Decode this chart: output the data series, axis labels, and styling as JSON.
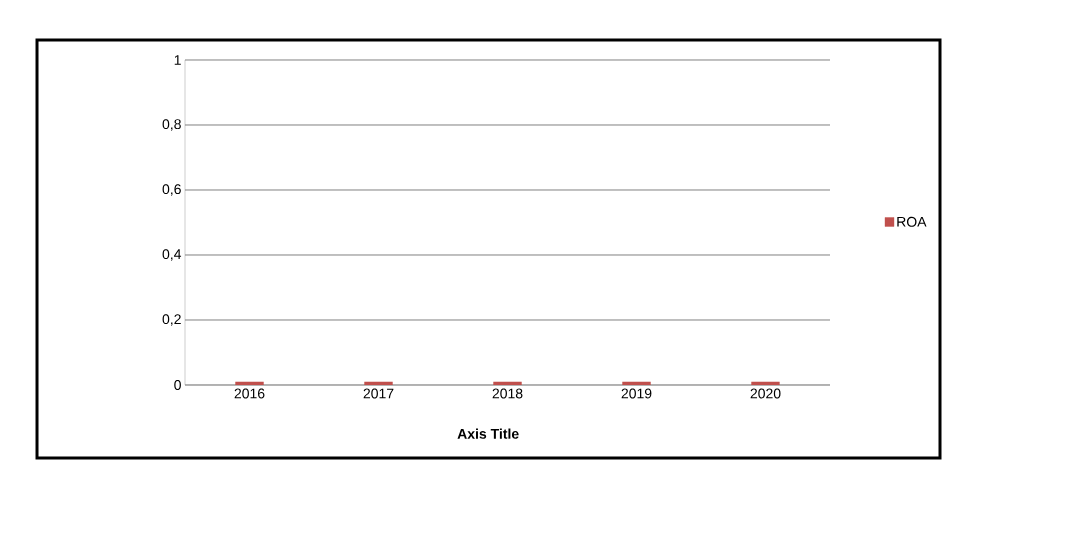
{
  "chart_data": {
    "type": "bar",
    "xlabel": "Axis Title",
    "categories": [
      "2016",
      "2017",
      "2018",
      "2019",
      "2020"
    ],
    "series": [
      {
        "name": "ROA",
        "color": "#c0504d",
        "values": [
          0.01,
          0.01,
          0.01,
          0.01,
          0.01
        ]
      }
    ],
    "ylim": [
      0,
      1
    ],
    "yticks": [
      0,
      {
        "value": 0.2,
        "label": "0,2"
      },
      {
        "value": 0.4,
        "label": "0,4"
      },
      {
        "value": 0.6,
        "label": "0,6"
      },
      {
        "value": 0.8,
        "label": "0,8"
      },
      1
    ],
    "grid": "y",
    "legend": "right"
  }
}
